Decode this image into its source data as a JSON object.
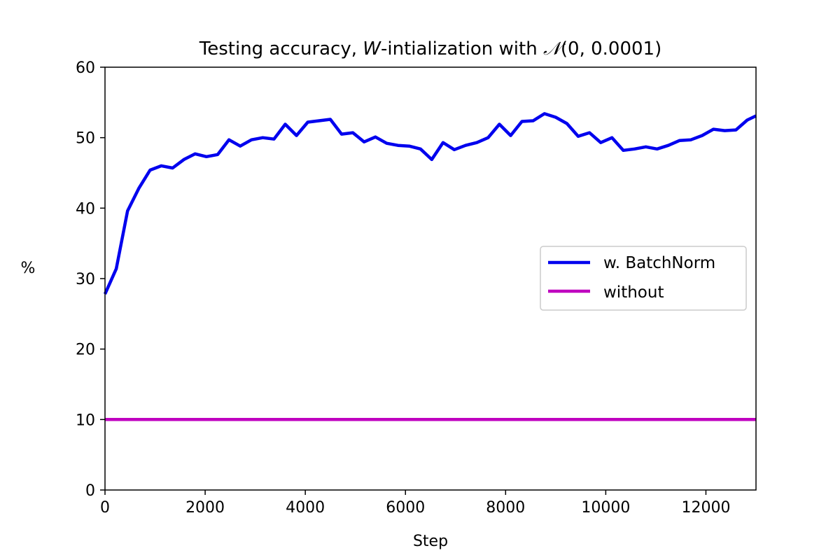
{
  "chart_data": {
    "type": "line",
    "title": {
      "prefix": "Testing accuracy, ",
      "var": "W",
      "middle": "-intialization with ",
      "dist": "𝒩",
      "params": "(0, 0.0001)"
    },
    "xlabel": "Step",
    "ylabel": "%",
    "xlim": [
      0,
      13000
    ],
    "ylim": [
      0,
      60
    ],
    "xticks": [
      0,
      2000,
      4000,
      6000,
      8000,
      10000,
      12000
    ],
    "yticks": [
      0,
      10,
      20,
      30,
      40,
      50,
      60
    ],
    "grid": false,
    "legend_position": "center-right",
    "series": [
      {
        "name": "w. BatchNorm",
        "color": "#0000ee",
        "x": [
          0,
          225,
          450,
          675,
          900,
          1125,
          1350,
          1575,
          1800,
          2025,
          2250,
          2475,
          2700,
          2925,
          3150,
          3375,
          3600,
          3825,
          4050,
          4275,
          4500,
          4725,
          4950,
          5175,
          5400,
          5625,
          5850,
          6075,
          6300,
          6525,
          6750,
          6975,
          7200,
          7425,
          7650,
          7875,
          8100,
          8325,
          8550,
          8775,
          9000,
          9225,
          9450,
          9675,
          9900,
          10125,
          10350,
          10575,
          10800,
          11025,
          11250,
          11475,
          11700,
          11925,
          12150,
          12375,
          12600,
          12825,
          13000
        ],
        "values": [
          27.8,
          31.4,
          39.6,
          42.8,
          45.4,
          46.0,
          45.7,
          46.9,
          47.7,
          47.3,
          47.6,
          49.7,
          48.8,
          49.7,
          50.0,
          49.8,
          51.9,
          50.3,
          52.2,
          52.4,
          52.6,
          50.5,
          50.7,
          49.4,
          50.1,
          49.2,
          48.9,
          48.8,
          48.4,
          46.9,
          49.3,
          48.3,
          48.9,
          49.3,
          50.0,
          51.9,
          50.3,
          52.3,
          52.4,
          53.4,
          52.9,
          52.0,
          50.2,
          50.7,
          49.3,
          50.0,
          48.2,
          48.4,
          48.7,
          48.4,
          48.9,
          49.6,
          49.7,
          50.3,
          51.2,
          51.0,
          51.1,
          52.5,
          53.1
        ]
      },
      {
        "name": "without",
        "color": "#bf00bf",
        "x": [
          0,
          13000
        ],
        "values": [
          10.0,
          10.0
        ]
      }
    ]
  }
}
